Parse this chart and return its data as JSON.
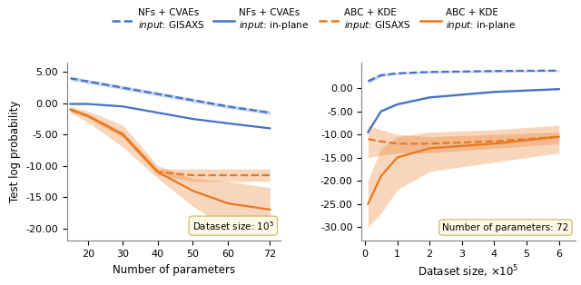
{
  "blue_color": "#4472C4",
  "orange_color": "#E87820",
  "left_x": [
    15,
    20,
    30,
    40,
    50,
    60,
    72
  ],
  "left_blue_gisaxs_mean": [
    4.0,
    3.5,
    2.5,
    1.5,
    0.5,
    -0.5,
    -1.5
  ],
  "left_blue_gisaxs_low": [
    3.7,
    3.2,
    2.2,
    1.2,
    0.2,
    -0.8,
    -1.8
  ],
  "left_blue_gisaxs_high": [
    4.3,
    3.8,
    2.8,
    1.8,
    0.8,
    -0.2,
    -1.2
  ],
  "left_blue_inplane_mean": [
    -0.1,
    -0.1,
    -0.5,
    -1.5,
    -2.5,
    -3.2,
    -4.0
  ],
  "left_blue_inplane_low": [
    -0.15,
    -0.15,
    -0.55,
    -1.55,
    -2.55,
    -3.25,
    -4.05
  ],
  "left_blue_inplane_high": [
    -0.05,
    -0.05,
    -0.45,
    -1.45,
    -2.45,
    -3.15,
    -3.95
  ],
  "left_orange_gisaxs_mean": [
    -1.0,
    -2.0,
    -5.0,
    -11.0,
    -11.5,
    -11.5,
    -11.5
  ],
  "left_orange_gisaxs_low": [
    -1.3,
    -2.3,
    -5.5,
    -11.5,
    -12.5,
    -12.5,
    -12.5
  ],
  "left_orange_gisaxs_high": [
    -0.7,
    -1.7,
    -4.5,
    -10.5,
    -10.5,
    -10.5,
    -10.5
  ],
  "left_orange_inplane_mean": [
    -1.0,
    -2.0,
    -5.0,
    -11.0,
    -14.0,
    -16.0,
    -17.0
  ],
  "left_orange_inplane_low": [
    -1.5,
    -3.0,
    -7.0,
    -12.0,
    -16.5,
    -20.0,
    -21.0
  ],
  "left_orange_inplane_high": [
    -0.5,
    -1.2,
    -3.5,
    -10.0,
    -12.0,
    -12.5,
    -13.5
  ],
  "left_xlabel": "Number of parameters",
  "left_ylabel": "Test log probability",
  "left_ylim": [
    -22,
    6.5
  ],
  "left_yticks": [
    5.0,
    0.0,
    -5.0,
    -10.0,
    -15.0,
    -20.0
  ],
  "left_xticks": [
    20,
    30,
    40,
    50,
    60,
    72
  ],
  "left_xlim": [
    14,
    75
  ],
  "left_annotation": "Dataset size: $10^5$",
  "right_x": [
    10000,
    50000,
    100000,
    200000,
    400000,
    600000
  ],
  "right_blue_gisaxs_mean": [
    1.5,
    2.8,
    3.2,
    3.5,
    3.7,
    3.8
  ],
  "right_blue_gisaxs_low": [
    1.0,
    2.5,
    3.0,
    3.3,
    3.5,
    3.6
  ],
  "right_blue_gisaxs_high": [
    2.0,
    3.1,
    3.4,
    3.7,
    3.9,
    4.0
  ],
  "right_blue_inplane_mean": [
    -9.5,
    -5.0,
    -3.5,
    -2.0,
    -0.8,
    -0.2
  ],
  "right_blue_inplane_low": [
    -9.7,
    -5.2,
    -3.7,
    -2.2,
    -1.0,
    -0.4
  ],
  "right_blue_inplane_high": [
    -9.3,
    -4.8,
    -3.3,
    -1.8,
    -0.6,
    0.0
  ],
  "right_orange_gisaxs_mean": [
    -11.0,
    -11.5,
    -12.0,
    -12.0,
    -11.5,
    -10.5
  ],
  "right_orange_gisaxs_low": [
    -15.0,
    -14.5,
    -14.0,
    -14.0,
    -13.0,
    -12.0
  ],
  "right_orange_gisaxs_high": [
    -8.0,
    -9.0,
    -10.0,
    -10.5,
    -10.0,
    -9.5
  ],
  "right_orange_inplane_mean": [
    -25.0,
    -19.0,
    -15.0,
    -13.0,
    -12.0,
    -10.5
  ],
  "right_orange_inplane_low": [
    -30.0,
    -27.0,
    -22.0,
    -18.0,
    -16.0,
    -14.0
  ],
  "right_orange_inplane_high": [
    -20.0,
    -13.0,
    -10.5,
    -9.5,
    -9.0,
    -8.0
  ],
  "right_xlabel": "Dataset size, $\\times10^5$",
  "right_ylim": [
    -33,
    5.5
  ],
  "right_yticks": [
    0.0,
    -5.0,
    -10.0,
    -15.0,
    -20.0,
    -25.0,
    -30.0
  ],
  "right_xticks": [
    0,
    100000,
    200000,
    300000,
    400000,
    500000,
    600000
  ],
  "right_xticklabels": [
    "0",
    "1",
    "2",
    "3",
    "4",
    "5",
    "6"
  ],
  "right_xlim": [
    -10000,
    650000
  ],
  "right_annotation": "Number of parameters: 72"
}
